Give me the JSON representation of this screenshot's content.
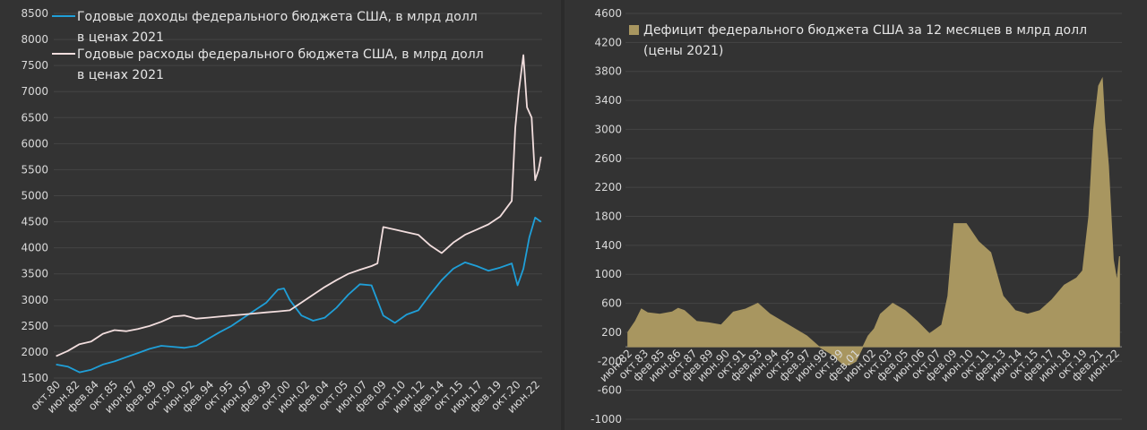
{
  "chart_data": [
    {
      "type": "line",
      "title": "",
      "ylim": [
        1500,
        8500
      ],
      "yticks": [
        1500,
        2000,
        2500,
        3000,
        3500,
        4000,
        4500,
        5000,
        5500,
        6000,
        6500,
        7000,
        7500,
        8000,
        8500
      ],
      "x_tick_labels": [
        "окт.80",
        "июн.82",
        "фев.84",
        "окт.85",
        "июн.87",
        "фев.89",
        "окт.90",
        "июн.92",
        "фев.94",
        "окт.95",
        "июн.97",
        "фев.99",
        "окт.00",
        "июн.02",
        "фев.04",
        "окт.05",
        "июн.07",
        "фев.09",
        "окт.10",
        "июн.12",
        "фев.14",
        "окт.15",
        "июн.17",
        "фев.19",
        "окт.20",
        "июн.22"
      ],
      "grid": true,
      "legend_position": "top-left",
      "colors": {
        "revenue": "#1f9fd8",
        "spending": "#f2dede"
      },
      "series": [
        {
          "name": "Годовые доходы федерального бюджета США, в млрд долл в ценах 2021",
          "name_lines": [
            "Годовые доходы федерального бюджета США, в млрд долл",
            "в ценах 2021"
          ],
          "x": [
            1981,
            1982,
            1983,
            1984,
            1985,
            1986,
            1987,
            1988,
            1989,
            1990,
            1991,
            1992,
            1993,
            1994,
            1995,
            1996,
            1997,
            1998,
            1999,
            2000,
            2000.5,
            2001,
            2002,
            2003,
            2004,
            2005,
            2006,
            2007,
            2008,
            2009,
            2010,
            2011,
            2012,
            2013,
            2014,
            2015,
            2016,
            2017,
            2018,
            2019,
            2020,
            2020.5,
            2021,
            2021.5,
            2022,
            2022.5
          ],
          "values": [
            1760,
            1720,
            1610,
            1660,
            1760,
            1820,
            1900,
            1980,
            2060,
            2120,
            2100,
            2080,
            2120,
            2250,
            2380,
            2500,
            2650,
            2800,
            2950,
            3200,
            3220,
            3000,
            2700,
            2600,
            2660,
            2850,
            3100,
            3300,
            3280,
            2700,
            2560,
            2720,
            2800,
            3100,
            3380,
            3600,
            3720,
            3650,
            3560,
            3620,
            3700,
            3280,
            3600,
            4200,
            4580,
            4500
          ]
        },
        {
          "name": "Годовые расходы федерального бюджета США, в млрд долл в ценах 2021",
          "name_lines": [
            "Годовые расходы федерального бюджета США, в млрд долл",
            "в ценах 2021"
          ],
          "x": [
            1981,
            1982,
            1983,
            1984,
            1985,
            1986,
            1987,
            1988,
            1989,
            1990,
            1991,
            1992,
            1993,
            1994,
            1995,
            1996,
            1997,
            1998,
            1999,
            2000,
            2001,
            2002,
            2003,
            2004,
            2005,
            2006,
            2007,
            2008,
            2008.5,
            2009,
            2010,
            2011,
            2012,
            2013,
            2014,
            2015,
            2016,
            2017,
            2018,
            2019,
            2020,
            2020.3,
            2020.6,
            2021,
            2021.3,
            2021.7,
            2022,
            2022.3,
            2022.5
          ],
          "values": [
            1920,
            2020,
            2150,
            2200,
            2350,
            2420,
            2400,
            2440,
            2500,
            2580,
            2680,
            2700,
            2640,
            2660,
            2680,
            2700,
            2720,
            2740,
            2760,
            2780,
            2800,
            2950,
            3100,
            3250,
            3380,
            3500,
            3580,
            3650,
            3700,
            4400,
            4350,
            4300,
            4250,
            4050,
            3900,
            4100,
            4250,
            4350,
            4450,
            4600,
            4900,
            6300,
            7000,
            7700,
            6700,
            6500,
            5300,
            5500,
            5750
          ]
        }
      ]
    },
    {
      "type": "area",
      "title": "",
      "ylim": [
        -1000,
        4600
      ],
      "yticks": [
        -1000,
        -600,
        -200,
        200,
        600,
        1000,
        1400,
        1800,
        2200,
        2600,
        3000,
        3400,
        3800,
        4200,
        4600
      ],
      "x_tick_labels": [
        "июн.82",
        "окт.83",
        "фев.85",
        "июн.86",
        "окт.87",
        "фев.89",
        "июн.90",
        "окт.91",
        "фев.93",
        "июн.94",
        "окт.95",
        "фев.97",
        "июн.98",
        "окт.99",
        "фев.01",
        "июн.02",
        "окт.03",
        "фев.05",
        "июн.06",
        "окт.07",
        "фев.09",
        "июн.10",
        "окт.11",
        "фев.13",
        "июн.14",
        "окт.15",
        "фев.17",
        "июн.18",
        "окт.19",
        "фев.21",
        "июн.22"
      ],
      "grid": true,
      "legend_position": "top-left",
      "colors": {
        "deficit": "#a89660"
      },
      "series": [
        {
          "name": "Дефицит федерального бюджета США за 12 месяцев в млрд долл (цены 2021)",
          "name_lines": [
            "Дефицит федерального бюджета США за 12 месяцев в млрд долл",
            "(цены 2021)"
          ],
          "x": [
            1982.4,
            1983,
            1983.5,
            1984,
            1985,
            1986,
            1986.5,
            1987,
            1988,
            1989,
            1990,
            1991,
            1992,
            1993,
            1994,
            1995,
            1996,
            1997,
            1998,
            1999,
            2000,
            2000.5,
            2001,
            2002,
            2002.5,
            2003,
            2004,
            2005,
            2006,
            2007,
            2008,
            2008.5,
            2009,
            2010,
            2011,
            2012,
            2013,
            2014,
            2015,
            2016,
            2017,
            2018,
            2019,
            2019.5,
            2020,
            2020.4,
            2020.8,
            2021.1,
            2021.3,
            2021.6,
            2022,
            2022.3,
            2022.5
          ],
          "values": [
            200,
            350,
            520,
            470,
            450,
            480,
            530,
            500,
            350,
            330,
            300,
            480,
            520,
            600,
            450,
            350,
            250,
            150,
            0,
            -100,
            -250,
            -250,
            -200,
            150,
            250,
            450,
            600,
            500,
            350,
            180,
            300,
            700,
            1700,
            1700,
            1450,
            1300,
            700,
            500,
            450,
            500,
            650,
            850,
            950,
            1050,
            1800,
            3000,
            3600,
            3700,
            3100,
            2500,
            1200,
            900,
            1250
          ]
        }
      ]
    }
  ]
}
